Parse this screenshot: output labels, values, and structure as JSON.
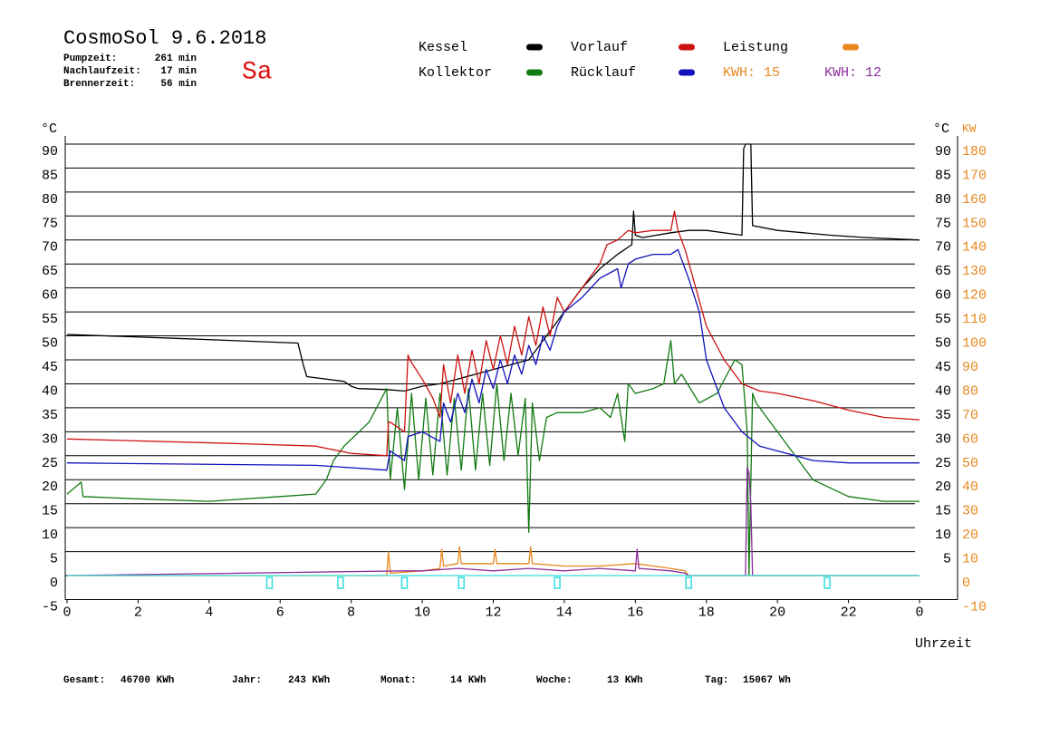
{
  "title": "CosmoSol 9.6.2018",
  "day": "Sa",
  "stats": [
    {
      "label": "Pumpzeit:",
      "value": "261 min"
    },
    {
      "label": "Nachlaufzeit:",
      "value": "17 min"
    },
    {
      "label": "Brennerzeit:",
      "value": "56 min"
    }
  ],
  "kwh": [
    {
      "text": "KWH: 15",
      "color": "#e8871e"
    },
    {
      "text": "KWH: 12",
      "color": "#8b2d9e"
    }
  ],
  "footer": [
    {
      "label": "Gesamt:",
      "value": "46700 KWh"
    },
    {
      "label": "Jahr:",
      "value": "243 KWh"
    },
    {
      "label": "Monat:",
      "value": "14 KWh"
    },
    {
      "label": "Woche:",
      "value": "13 KWh"
    },
    {
      "label": "Tag:",
      "value": "15067 Wh"
    }
  ],
  "chart_data": {
    "type": "line",
    "y_unit": "°C",
    "y2_unit": "KW",
    "xlabel": "Uhrzeit",
    "xlim": [
      0,
      24
    ],
    "xticks": [
      0,
      2,
      4,
      6,
      8,
      10,
      12,
      14,
      16,
      18,
      20,
      22,
      {
        "value": 24,
        "label": "0"
      }
    ],
    "ylim": [
      -5,
      95
    ],
    "yticks": [
      -5,
      0,
      5,
      10,
      15,
      20,
      25,
      30,
      35,
      40,
      45,
      50,
      55,
      60,
      65,
      70,
      75,
      80,
      85,
      90
    ],
    "right_yticks": [
      5,
      10,
      15,
      20,
      25,
      30,
      35,
      40,
      45,
      50,
      55,
      60,
      65,
      70,
      75,
      80,
      85,
      90
    ],
    "y2lim": [
      -10,
      190
    ],
    "y2ticks": [
      -10,
      0,
      10,
      20,
      30,
      40,
      50,
      60,
      70,
      80,
      90,
      100,
      110,
      120,
      130,
      140,
      150,
      160,
      170,
      180
    ],
    "grid": true,
    "series": [
      {
        "name": "Kessel",
        "color": "#000000",
        "x": [
          0,
          3,
          6.5,
          6.65,
          6.75,
          7.8,
          8.0,
          8.2,
          9.0,
          9.5,
          10,
          10.5,
          11,
          12,
          13,
          13.5,
          14,
          14.5,
          15,
          15.5,
          15.9,
          15.95,
          16,
          16.2,
          17,
          17.5,
          18,
          19,
          19.05,
          19.1,
          19.25,
          19.3,
          20,
          21.5,
          22.5,
          24
        ],
        "values": [
          50.3,
          49.5,
          48.5,
          44,
          41.5,
          40.5,
          39.5,
          39,
          38.8,
          38.5,
          39.5,
          40,
          41,
          43,
          45,
          50,
          55,
          60,
          64,
          67,
          69,
          76,
          71,
          70.5,
          71.5,
          72,
          72,
          71,
          89,
          90,
          90,
          73,
          72,
          71,
          70.5,
          70
        ]
      },
      {
        "name": "Kollektor",
        "color": "#117a11",
        "x": [
          0,
          0.4,
          0.45,
          2,
          4,
          6,
          7,
          7.3,
          7.5,
          7.8,
          8.5,
          9.0,
          9.1,
          9.3,
          9.5,
          9.7,
          9.9,
          10.1,
          10.3,
          10.5,
          10.7,
          10.9,
          11.1,
          11.3,
          11.5,
          11.7,
          11.9,
          12.1,
          12.3,
          12.5,
          12.7,
          12.9,
          13.0,
          13.1,
          13.3,
          13.5,
          13.8,
          14.5,
          15.0,
          15.3,
          15.5,
          15.7,
          15.8,
          16.0,
          16.5,
          16.8,
          17.0,
          17.1,
          17.3,
          17.8,
          18.3,
          18.8,
          19.0,
          19.15,
          19.2,
          19.3,
          19.4,
          20.0,
          20.5,
          21.0,
          22,
          23,
          24
        ],
        "values": [
          17,
          19.5,
          16.5,
          16,
          15.5,
          16.5,
          17,
          20,
          24,
          27,
          32,
          39,
          20,
          35,
          18,
          38,
          20,
          37,
          21,
          38,
          21,
          37,
          22,
          39,
          22,
          38,
          23,
          40,
          24,
          38,
          25,
          37,
          9,
          36,
          24,
          33,
          34,
          34,
          35,
          33,
          38,
          28,
          40,
          38,
          39,
          40,
          49,
          40,
          42,
          36,
          38,
          45,
          44,
          30,
          0,
          38,
          36,
          30,
          25,
          20,
          16.5,
          15.5,
          15.5
        ]
      },
      {
        "name": "Vorlauf",
        "color": "#cc1111",
        "x": [
          0,
          5,
          7,
          8,
          9,
          9.05,
          9.1,
          9.5,
          9.6,
          9.65,
          10,
          10.3,
          10.5,
          10.6,
          10.8,
          11,
          11.2,
          11.4,
          11.6,
          11.8,
          12,
          12.2,
          12.4,
          12.6,
          12.8,
          13,
          13.2,
          13.4,
          13.6,
          13.8,
          14,
          14.5,
          15,
          15.2,
          15.5,
          15.8,
          16,
          16.5,
          17,
          17.1,
          17.2,
          17.4,
          17.7,
          18,
          18.5,
          19,
          19.5,
          20,
          21,
          22,
          23,
          24
        ],
        "values": [
          28.5,
          27.5,
          27,
          25.5,
          25,
          32,
          32,
          30,
          46,
          45,
          41,
          37,
          33,
          44,
          36,
          46,
          38,
          47,
          40,
          49,
          43,
          50,
          44,
          52,
          46,
          54,
          48,
          56,
          50,
          58,
          55,
          60,
          65,
          69,
          70,
          72,
          71.5,
          72,
          72,
          76,
          72,
          68,
          60,
          52,
          45,
          40,
          38.5,
          38,
          36.5,
          34.5,
          33,
          32.5
        ]
      },
      {
        "name": "Rücklauf",
        "color": "#1111bb",
        "x": [
          0,
          7,
          8,
          9,
          9.1,
          9.5,
          9.6,
          10,
          10.5,
          10.6,
          10.8,
          11,
          11.2,
          11.4,
          11.6,
          11.8,
          12,
          12.2,
          12.4,
          12.6,
          12.8,
          13,
          13.2,
          13.4,
          13.6,
          13.8,
          14,
          14.5,
          15,
          15.5,
          15.6,
          15.8,
          16,
          16.5,
          17,
          17.2,
          17.5,
          17.8,
          18,
          18.5,
          19,
          19.5,
          20,
          21,
          22,
          24
        ],
        "values": [
          23.5,
          23,
          22.5,
          22,
          26,
          24,
          29,
          30,
          28,
          36,
          32,
          38,
          34,
          41,
          36,
          43,
          39,
          45,
          40,
          46,
          42,
          48,
          44,
          50,
          47,
          52,
          55,
          58,
          62,
          64,
          60,
          65,
          66,
          67,
          67,
          68,
          62,
          55,
          45,
          35,
          30,
          27,
          26,
          24,
          23.5,
          23.5
        ]
      },
      {
        "name": "Leistung",
        "color": "#e8871e",
        "axis": "y2",
        "x": [
          0,
          9,
          9.05,
          9.1,
          10,
          10.5,
          10.55,
          10.6,
          11,
          11.05,
          11.1,
          12,
          12.05,
          12.1,
          13,
          13.05,
          13.1,
          14,
          15,
          16,
          16.5,
          17,
          17.4,
          17.5,
          24
        ],
        "values": [
          0,
          0,
          10,
          1,
          2,
          3,
          11,
          4,
          5,
          12,
          5,
          5,
          11,
          5,
          5,
          12,
          5,
          4,
          4,
          5,
          4,
          3,
          2,
          0,
          0
        ]
      },
      {
        "color": "#8b2d9e",
        "axis": "y2",
        "x": [
          0,
          9.5,
          10,
          11,
          12,
          13,
          14,
          15,
          16,
          16.05,
          16.1,
          17,
          17.4,
          17.5,
          19.1,
          19.15,
          19.2,
          19.25,
          19.3,
          24
        ],
        "values": [
          0,
          2,
          2,
          3,
          2,
          3,
          2,
          3,
          2,
          11,
          3,
          2,
          1,
          0,
          0,
          45,
          43,
          30,
          0,
          0
        ]
      },
      {
        "color": "#33dddd",
        "x": [
          0,
          24
        ],
        "values": [
          0,
          0
        ]
      }
    ],
    "pump_markers": [
      5.7,
      7.7,
      9.5,
      11.1,
      13.8,
      17.5,
      21.4
    ]
  }
}
